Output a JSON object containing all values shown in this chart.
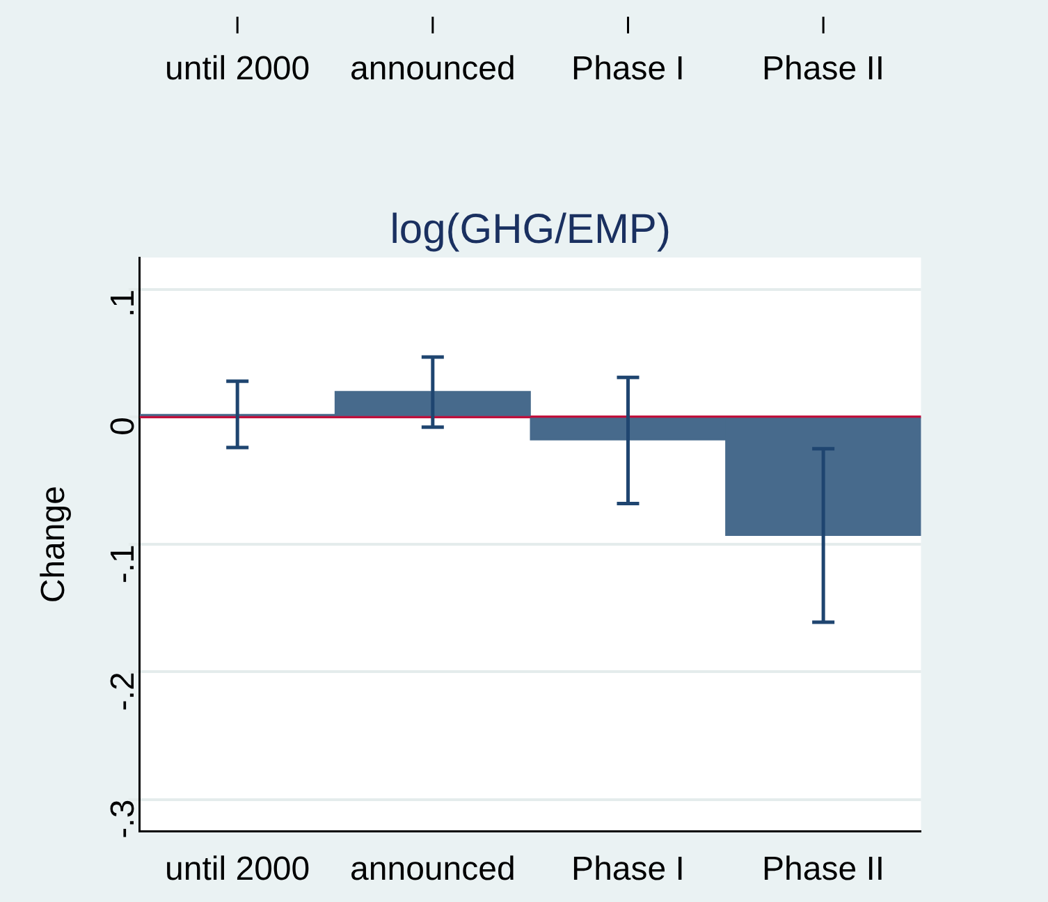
{
  "chart_data": {
    "type": "bar",
    "title": "log(GHG/EMP)",
    "ylabel": "Change",
    "categories": [
      "until 2000",
      "announced",
      "Phase I",
      "Phase II"
    ],
    "values": [
      0.002,
      0.02,
      -0.018,
      -0.093
    ],
    "errors": [
      [
        -0.024,
        0.028
      ],
      [
        -0.008,
        0.047
      ],
      [
        -0.068,
        0.031
      ],
      [
        -0.161,
        -0.025
      ]
    ],
    "color": "#476a8c",
    "ylim": [
      -0.325,
      0.125
    ],
    "yticks": [
      {
        "value": -0.3,
        "label": "-.3"
      },
      {
        "value": -0.2,
        "label": "-.2"
      },
      {
        "value": -0.1,
        "label": "-.1"
      },
      {
        "value": 0,
        "label": "0"
      },
      {
        "value": 0.1,
        "label": ".1"
      }
    ],
    "ref_lines": [
      {
        "axis": "y",
        "value": 0,
        "color": "#c0103c"
      }
    ],
    "grid": "y",
    "legend": false
  }
}
